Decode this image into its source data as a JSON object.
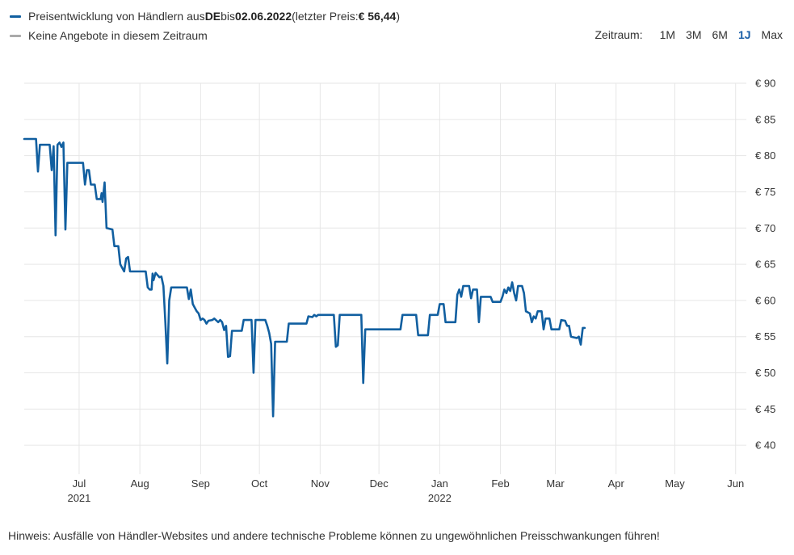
{
  "colors": {
    "series": "#115fa0",
    "no_offers": "#aaaaaa",
    "grid": "#e6e6e6",
    "active": "#1a5fa8"
  },
  "legend": {
    "series": {
      "prefix": "Preisentwicklung von Händlern aus ",
      "country": "DE",
      "mid": " bis ",
      "date": "02.06.2022",
      "price_prefix": " (letzter Preis: ",
      "price": "€ 56,44",
      "suffix": ")"
    },
    "no_offers": "Keine Angebote in diesem Zeitraum"
  },
  "range_selector": {
    "label": "Zeitraum:",
    "options": [
      "1M",
      "3M",
      "6M",
      "1J",
      "Max"
    ],
    "active": "1J"
  },
  "note": "Hinweis: Ausfälle von Händler-Websites und andere technische Probleme können zu ungewöhnlichen Preisschwankungen führen!",
  "chart_data": {
    "type": "line",
    "title": "",
    "xlabel": "",
    "ylabel": "",
    "ylim": [
      36,
      90
    ],
    "xlim": [
      0,
      366
    ],
    "y_ticks": [
      90,
      85,
      80,
      75,
      70,
      65,
      60,
      55,
      50,
      45,
      40
    ],
    "y_tick_labels": [
      "€ 90",
      "€ 85",
      "€ 80",
      "€ 75",
      "€ 70",
      "€ 65",
      "€ 60",
      "€ 55",
      "€ 50",
      "€ 45",
      "€ 40"
    ],
    "x_ticks": [
      {
        "x": 28,
        "label": "Jul",
        "sub": "2021"
      },
      {
        "x": 59,
        "label": "Aug",
        "sub": ""
      },
      {
        "x": 90,
        "label": "Sep",
        "sub": ""
      },
      {
        "x": 120,
        "label": "Oct",
        "sub": ""
      },
      {
        "x": 151,
        "label": "Nov",
        "sub": ""
      },
      {
        "x": 181,
        "label": "Dec",
        "sub": ""
      },
      {
        "x": 212,
        "label": "Jan",
        "sub": "2022"
      },
      {
        "x": 243,
        "label": "Feb",
        "sub": ""
      },
      {
        "x": 271,
        "label": "Mar",
        "sub": ""
      },
      {
        "x": 302,
        "label": "Apr",
        "sub": ""
      },
      {
        "x": 332,
        "label": "May",
        "sub": ""
      },
      {
        "x": 363,
        "label": "Jun",
        "sub": ""
      }
    ],
    "series": [
      {
        "name": "Preisentwicklung von Händlern aus DE",
        "points": [
          [
            0,
            82.3
          ],
          [
            6,
            82.3
          ],
          [
            7,
            77.8
          ],
          [
            8,
            81.5
          ],
          [
            13,
            81.5
          ],
          [
            14,
            78
          ],
          [
            15,
            81.3
          ],
          [
            16,
            69
          ],
          [
            17,
            81.5
          ],
          [
            18,
            81.8
          ],
          [
            19,
            81.2
          ],
          [
            20,
            81.8
          ],
          [
            21,
            69.8
          ],
          [
            22,
            79
          ],
          [
            30,
            79
          ],
          [
            31,
            76
          ],
          [
            32,
            78
          ],
          [
            33,
            78
          ],
          [
            34,
            76
          ],
          [
            36,
            76
          ],
          [
            37,
            74
          ],
          [
            39,
            74
          ],
          [
            39.5,
            74.8
          ],
          [
            40,
            73.6
          ],
          [
            41,
            76.3
          ],
          [
            42,
            70
          ],
          [
            45,
            69.8
          ],
          [
            46,
            67.5
          ],
          [
            48,
            67.5
          ],
          [
            49,
            65
          ],
          [
            50,
            64.5
          ],
          [
            51,
            64
          ],
          [
            52,
            65.8
          ],
          [
            53,
            66
          ],
          [
            54,
            64
          ],
          [
            62,
            64
          ],
          [
            63,
            61.8
          ],
          [
            64,
            61.5
          ],
          [
            65,
            61.5
          ],
          [
            65.5,
            63.7
          ],
          [
            66,
            62.8
          ],
          [
            67,
            63.8
          ],
          [
            69,
            63.2
          ],
          [
            70,
            63.3
          ],
          [
            71,
            62
          ],
          [
            72,
            57
          ],
          [
            73,
            51.3
          ],
          [
            74,
            60
          ],
          [
            75,
            61.8
          ],
          [
            83,
            61.8
          ],
          [
            84,
            60.2
          ],
          [
            85,
            61.5
          ],
          [
            86,
            59.5
          ],
          [
            88,
            58.5
          ],
          [
            89,
            58.2
          ],
          [
            90,
            57.3
          ],
          [
            91,
            57.5
          ],
          [
            92,
            57.3
          ],
          [
            93,
            56.8
          ],
          [
            94,
            57.2
          ],
          [
            96,
            57.3
          ],
          [
            97,
            57.5
          ],
          [
            99,
            57
          ],
          [
            100,
            57.3
          ],
          [
            101,
            57
          ],
          [
            102,
            55.9
          ],
          [
            103,
            56.5
          ],
          [
            104,
            52.2
          ],
          [
            105,
            52.3
          ],
          [
            106,
            55.8
          ],
          [
            111,
            55.8
          ],
          [
            112,
            57.3
          ],
          [
            116,
            57.3
          ],
          [
            117,
            50
          ],
          [
            118,
            57.3
          ],
          [
            123,
            57.3
          ],
          [
            124,
            56.5
          ],
          [
            125,
            55.5
          ],
          [
            126,
            54
          ],
          [
            127,
            44
          ],
          [
            128,
            54.3
          ],
          [
            134,
            54.3
          ],
          [
            135,
            56.8
          ],
          [
            144,
            56.8
          ],
          [
            145,
            57.8
          ],
          [
            147,
            57.7
          ],
          [
            148,
            58
          ],
          [
            149,
            57.8
          ],
          [
            150,
            58
          ],
          [
            158,
            58
          ],
          [
            159,
            53.6
          ],
          [
            160,
            53.8
          ],
          [
            161,
            58
          ],
          [
            172,
            58
          ],
          [
            173,
            48.6
          ],
          [
            174,
            56
          ],
          [
            192,
            56
          ],
          [
            193,
            58
          ],
          [
            200,
            58
          ],
          [
            201,
            55.2
          ],
          [
            206,
            55.2
          ],
          [
            207,
            58
          ],
          [
            211,
            58
          ],
          [
            212,
            59.5
          ],
          [
            214,
            59.5
          ],
          [
            215,
            57
          ],
          [
            220,
            57
          ],
          [
            221,
            60.8
          ],
          [
            222,
            61.5
          ],
          [
            223,
            60.5
          ],
          [
            224,
            62
          ],
          [
            227,
            62
          ],
          [
            228,
            60.3
          ],
          [
            229,
            61.5
          ],
          [
            231,
            61.5
          ],
          [
            232,
            57
          ],
          [
            233,
            60.5
          ],
          [
            238,
            60.5
          ],
          [
            239,
            59.8
          ],
          [
            243,
            59.8
          ],
          [
            244,
            60.5
          ],
          [
            245,
            61.5
          ],
          [
            246,
            61
          ],
          [
            247,
            61.8
          ],
          [
            248,
            61.3
          ],
          [
            249,
            62.5
          ],
          [
            250,
            61
          ],
          [
            251,
            60
          ],
          [
            252,
            62
          ],
          [
            254,
            62
          ],
          [
            255,
            61
          ],
          [
            256,
            58.5
          ],
          [
            258,
            58.2
          ],
          [
            259,
            57
          ],
          [
            260,
            57.8
          ],
          [
            261,
            57.5
          ],
          [
            262,
            58.5
          ],
          [
            264,
            58.5
          ],
          [
            265,
            56
          ],
          [
            266,
            57.5
          ],
          [
            267,
            57.5
          ],
          [
            268,
            57.5
          ],
          [
            269,
            56
          ],
          [
            273,
            56
          ],
          [
            274,
            57.3
          ],
          [
            276,
            57.2
          ],
          [
            277,
            56.5
          ],
          [
            278,
            56.5
          ],
          [
            279,
            55
          ],
          [
            282,
            54.8
          ],
          [
            283,
            55
          ],
          [
            284,
            53.9
          ],
          [
            285,
            56.2
          ],
          [
            286,
            56.2
          ]
        ]
      }
    ]
  }
}
